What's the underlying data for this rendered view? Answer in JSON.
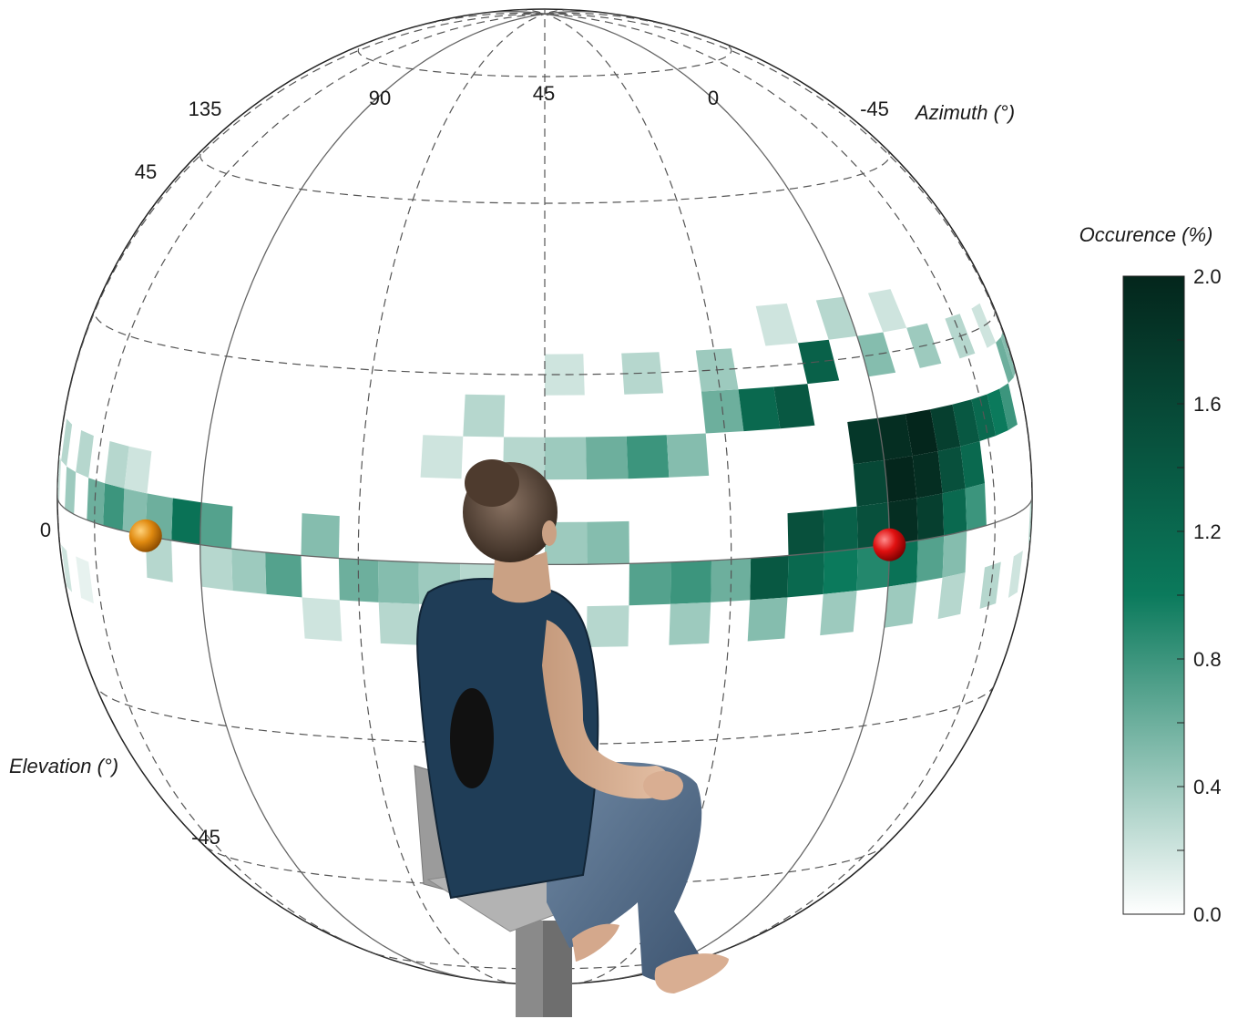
{
  "chart_data": {
    "type": "heatmap",
    "projection": "sphere",
    "azimuth_label": "Azimuth (°)",
    "elevation_label": "Elevation (°)",
    "azimuth_ticks": [
      "135",
      "90",
      "45",
      "0",
      "-45"
    ],
    "elevation_ticks": [
      "45",
      "0",
      "-45"
    ],
    "colorbar": {
      "label": "Occurence (%)",
      "min": 0.0,
      "max": 2.0,
      "ticks": [
        "2.0",
        "1.6",
        "1.2",
        "0.8",
        "0.4",
        "0.0"
      ],
      "color_low": "#ffffff",
      "color_mid": "#0b7a5c",
      "color_high": "#04261c"
    },
    "grid_step_deg": 5,
    "cells": [
      {
        "az": 60,
        "el": 10,
        "v": 0.2
      },
      {
        "az": 55,
        "el": 15,
        "v": 0.3
      },
      {
        "az": 50,
        "el": 10,
        "v": 0.3
      },
      {
        "az": 45,
        "el": 10,
        "v": 0.4
      },
      {
        "az": 40,
        "el": 10,
        "v": 0.6
      },
      {
        "az": 35,
        "el": 10,
        "v": 0.8
      },
      {
        "az": 30,
        "el": 10,
        "v": 0.5
      },
      {
        "az": 25,
        "el": 15,
        "v": 0.6
      },
      {
        "az": 20,
        "el": 15,
        "v": 1.2
      },
      {
        "az": 15,
        "el": 15,
        "v": 1.4
      },
      {
        "az": 10,
        "el": 20,
        "v": 1.3
      },
      {
        "az": 5,
        "el": 10,
        "v": 1.8
      },
      {
        "az": 0,
        "el": 10,
        "v": 1.9
      },
      {
        "az": -5,
        "el": 10,
        "v": 2.0
      },
      {
        "az": -10,
        "el": 10,
        "v": 1.7
      },
      {
        "az": -15,
        "el": 10,
        "v": 1.4
      },
      {
        "az": -20,
        "el": 10,
        "v": 1.2
      },
      {
        "az": -25,
        "el": 10,
        "v": 1.0
      },
      {
        "az": -30,
        "el": 10,
        "v": 0.8
      },
      {
        "az": -35,
        "el": 15,
        "v": 0.6
      },
      {
        "az": -40,
        "el": 15,
        "v": 0.5
      },
      {
        "az": -45,
        "el": 15,
        "v": 0.4
      },
      {
        "az": 5,
        "el": 5,
        "v": 1.6
      },
      {
        "az": 0,
        "el": 5,
        "v": 2.0
      },
      {
        "az": -5,
        "el": 5,
        "v": 1.9
      },
      {
        "az": -10,
        "el": 5,
        "v": 1.5
      },
      {
        "az": -15,
        "el": 5,
        "v": 1.2
      },
      {
        "az": 10,
        "el": 0,
        "v": 1.3
      },
      {
        "az": 5,
        "el": 0,
        "v": 1.5
      },
      {
        "az": 0,
        "el": 0,
        "v": 1.9
      },
      {
        "az": -5,
        "el": 0,
        "v": 1.7
      },
      {
        "az": -10,
        "el": 0,
        "v": 1.2
      },
      {
        "az": -15,
        "el": 0,
        "v": 0.8
      },
      {
        "az": 15,
        "el": 0,
        "v": 1.5
      },
      {
        "az": 20,
        "el": -5,
        "v": 1.4
      },
      {
        "az": 15,
        "el": -5,
        "v": 1.2
      },
      {
        "az": 10,
        "el": -5,
        "v": 1.0
      },
      {
        "az": 5,
        "el": -5,
        "v": 0.9
      },
      {
        "az": 0,
        "el": -5,
        "v": 1.1
      },
      {
        "az": -5,
        "el": -5,
        "v": 0.7
      },
      {
        "az": -10,
        "el": -5,
        "v": 0.5
      },
      {
        "az": 25,
        "el": -5,
        "v": 0.6
      },
      {
        "az": 30,
        "el": -5,
        "v": 0.8
      },
      {
        "az": 35,
        "el": -5,
        "v": 0.7
      },
      {
        "az": 40,
        "el": 0,
        "v": 0.5
      },
      {
        "az": 45,
        "el": 0,
        "v": 0.4
      },
      {
        "az": 55,
        "el": -5,
        "v": 0.3
      },
      {
        "az": 60,
        "el": -5,
        "v": 0.4
      },
      {
        "az": 65,
        "el": -5,
        "v": 0.5
      },
      {
        "az": 70,
        "el": -5,
        "v": 0.6
      },
      {
        "az": 75,
        "el": 0,
        "v": 0.5
      },
      {
        "az": 80,
        "el": -5,
        "v": 0.7
      },
      {
        "az": 85,
        "el": -5,
        "v": 0.4
      },
      {
        "az": 90,
        "el": 0,
        "v": 0.7
      },
      {
        "az": 95,
        "el": 0,
        "v": 1.1
      },
      {
        "az": 100,
        "el": 0,
        "v": 0.6
      },
      {
        "az": 105,
        "el": 0,
        "v": 0.5
      },
      {
        "az": 110,
        "el": 0,
        "v": 0.8
      },
      {
        "az": 115,
        "el": 0,
        "v": 0.6
      },
      {
        "az": 120,
        "el": 5,
        "v": 0.3
      },
      {
        "az": 125,
        "el": 0,
        "v": 0.4
      },
      {
        "az": 130,
        "el": 5,
        "v": 0.3
      },
      {
        "az": 135,
        "el": 0,
        "v": 0.2
      },
      {
        "az": 140,
        "el": 5,
        "v": 0.2
      },
      {
        "az": 145,
        "el": 0,
        "v": 0.2
      },
      {
        "az": 150,
        "el": 5,
        "v": 0.2
      },
      {
        "az": 155,
        "el": -5,
        "v": 0.1
      },
      {
        "az": 110,
        "el": 5,
        "v": 0.3
      },
      {
        "az": 105,
        "el": 5,
        "v": 0.2
      },
      {
        "az": 100,
        "el": -5,
        "v": 0.3
      },
      {
        "az": 90,
        "el": -5,
        "v": 0.3
      },
      {
        "az": 75,
        "el": -10,
        "v": 0.2
      },
      {
        "az": 65,
        "el": -10,
        "v": 0.3
      },
      {
        "az": 50,
        "el": -10,
        "v": 0.2
      },
      {
        "az": 40,
        "el": -10,
        "v": 0.3
      },
      {
        "az": 30,
        "el": -10,
        "v": 0.4
      },
      {
        "az": 20,
        "el": -10,
        "v": 0.5
      },
      {
        "az": 10,
        "el": -10,
        "v": 0.4
      },
      {
        "az": 0,
        "el": -10,
        "v": 0.4
      },
      {
        "az": -10,
        "el": -10,
        "v": 0.3
      },
      {
        "az": -20,
        "el": -10,
        "v": 0.3
      },
      {
        "az": -30,
        "el": -10,
        "v": 0.2
      },
      {
        "az": -40,
        "el": -5,
        "v": 0.3
      },
      {
        "az": -45,
        "el": 0,
        "v": 0.2
      },
      {
        "az": -50,
        "el": 5,
        "v": 0.2
      },
      {
        "az": 25,
        "el": 20,
        "v": 0.4
      },
      {
        "az": 35,
        "el": 20,
        "v": 0.3
      },
      {
        "az": 45,
        "el": 20,
        "v": 0.2
      },
      {
        "az": 0,
        "el": 20,
        "v": 0.5
      },
      {
        "az": -10,
        "el": 20,
        "v": 0.4
      },
      {
        "az": -20,
        "el": 20,
        "v": 0.3
      },
      {
        "az": -30,
        "el": 20,
        "v": 0.2
      },
      {
        "az": 5,
        "el": 25,
        "v": 0.3
      },
      {
        "az": -5,
        "el": 25,
        "v": 0.2
      },
      {
        "az": 15,
        "el": 25,
        "v": 0.2
      },
      {
        "az": 120,
        "el": -10,
        "v": 0.1
      },
      {
        "az": 130,
        "el": -10,
        "v": 0.2
      },
      {
        "az": -55,
        "el": -10,
        "v": 0.2
      }
    ],
    "markers": [
      {
        "name": "orange-target",
        "az": 100,
        "el": 0,
        "color": "#e08a10"
      },
      {
        "name": "red-target",
        "az": 0,
        "el": 0,
        "color": "#e01010"
      }
    ],
    "ylim": [
      -90,
      90
    ],
    "xlim": [
      180,
      -180
    ]
  }
}
